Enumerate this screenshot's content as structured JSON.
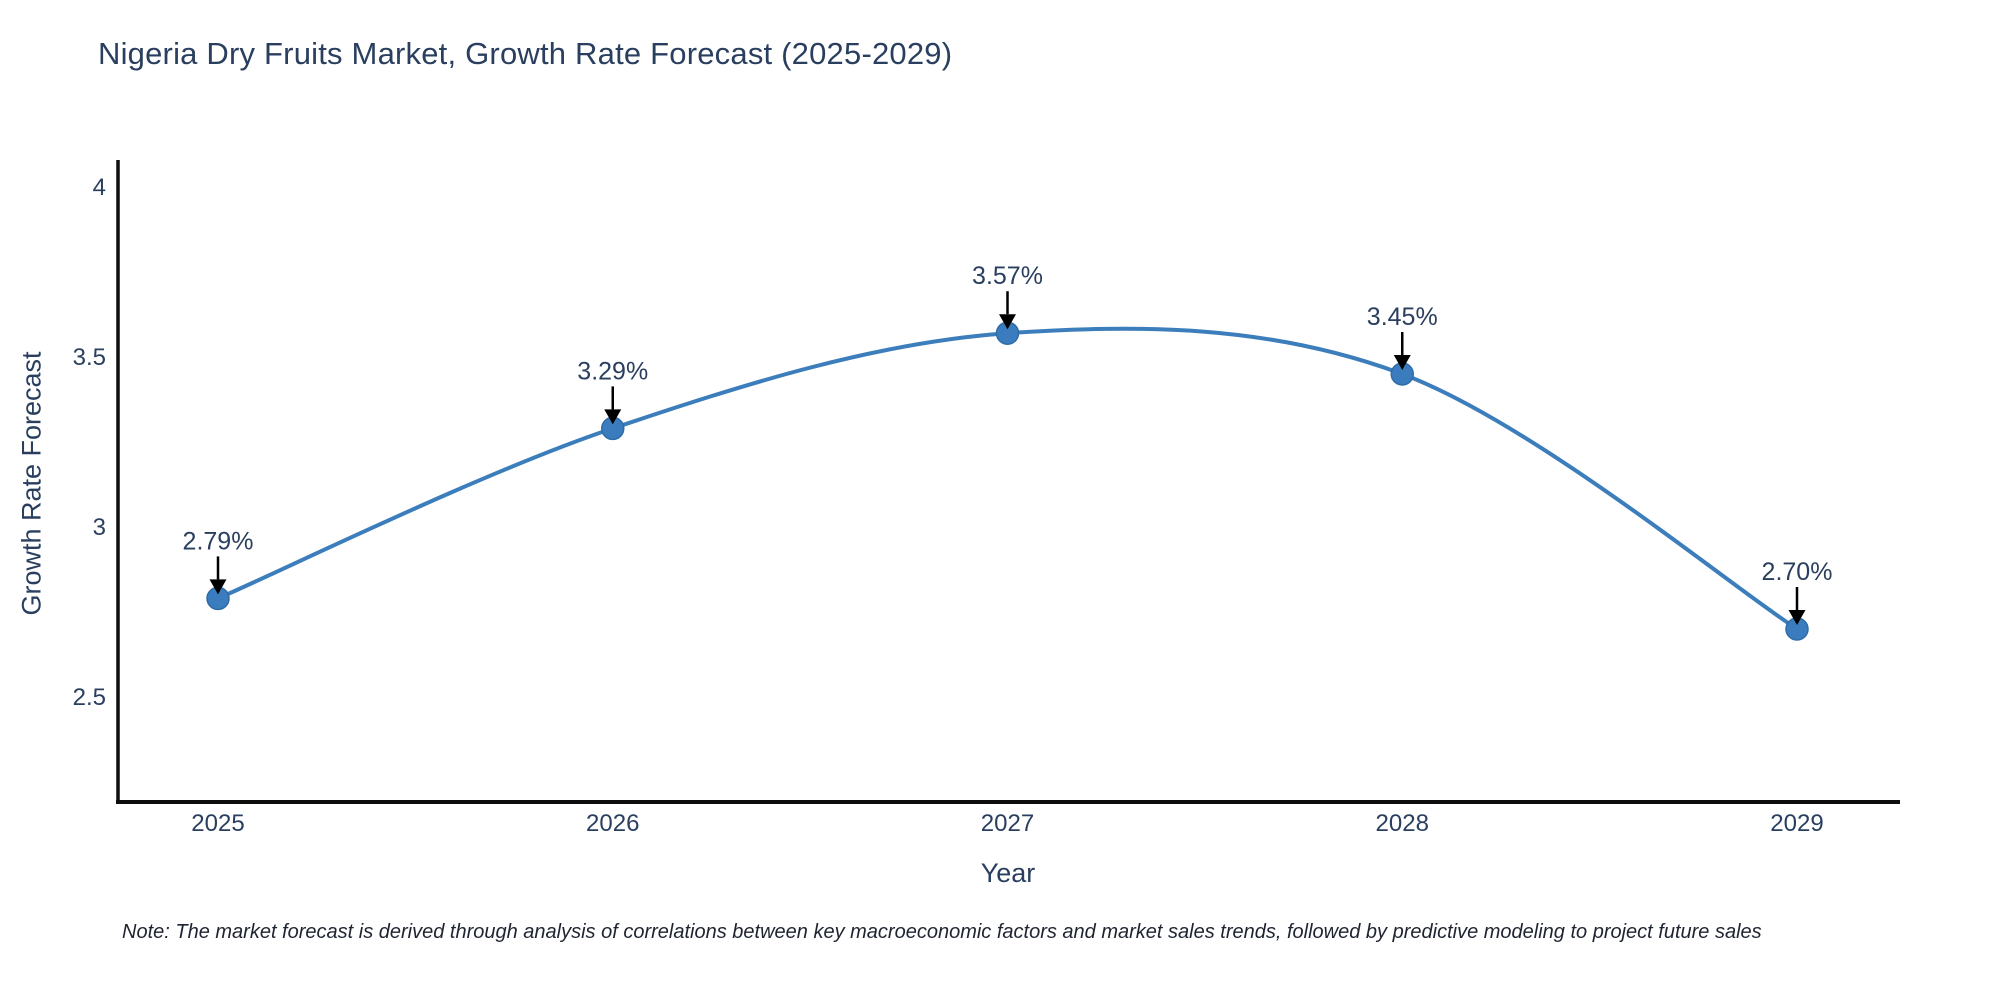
{
  "chart": {
    "title": "Nigeria Dry Fruits Market, Growth Rate Forecast (2025-2029)",
    "y_axis_title": "Growth Rate Forecast",
    "x_axis_title": "Year",
    "note": "Note: The market forecast is derived through analysis of correlations between key macroeconomic factors and market sales trends, followed by predictive modeling to project future sales"
  },
  "chart_data": {
    "type": "line",
    "line_shape": "spline",
    "title": "Nigeria Dry Fruits Market, Growth Rate Forecast (2025-2029)",
    "xlabel": "Year",
    "ylabel": "Growth Rate Forecast",
    "x": [
      2025,
      2026,
      2027,
      2028,
      2029
    ],
    "values": [
      2.79,
      3.29,
      3.57,
      3.45,
      2.7
    ],
    "point_labels": [
      "2.79%",
      "3.29%",
      "3.57%",
      "3.45%",
      "2.70%"
    ],
    "x_tick_labels": [
      "2025",
      "2026",
      "2027",
      "2028",
      "2029"
    ],
    "yticks": [
      2.5,
      3,
      3.5,
      4
    ],
    "ytick_labels": [
      "2.5",
      "3",
      "3.5",
      "4"
    ],
    "ylim": [
      2.19,
      4.19
    ],
    "xlim": [
      2024.74,
      2029.26
    ],
    "grid": false,
    "legend": false,
    "line_color": "#3c7dbb",
    "marker_color": "#3a7cbe",
    "marker_edge_color": "#2e6ca8",
    "axis_color": "#0d0d0d",
    "text_color": "#2a3f5f",
    "annotation_arrow_color": "#000000"
  }
}
